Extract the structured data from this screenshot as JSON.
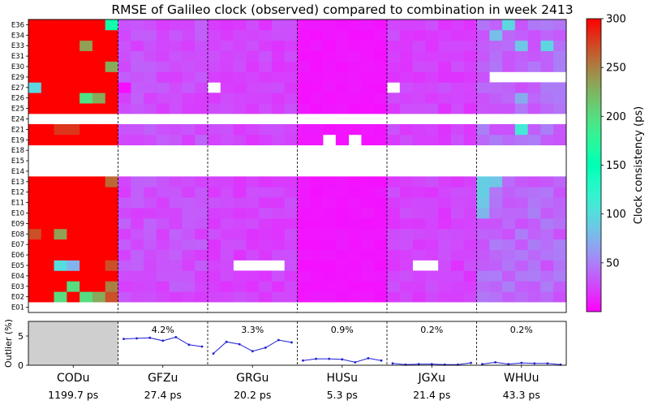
{
  "chart_data": {
    "type": "heatmap",
    "title": "RMSE of Galileo clock (observed) compared to combination in week 2413",
    "satellites": [
      "E01",
      "E02",
      "E03",
      "E04",
      "E05",
      "E06",
      "E07",
      "E08",
      "E09",
      "E10",
      "E11",
      "E12",
      "E13",
      "E14",
      "E15",
      "E18",
      "E19",
      "E21",
      "E24",
      "E25",
      "E26",
      "E27",
      "E29",
      "E30",
      "E31",
      "E33",
      "E34",
      "E36"
    ],
    "empty_rows": [
      "E01",
      "E14",
      "E15",
      "E18",
      "E24"
    ],
    "days_per_center": 7,
    "colorbar": {
      "label": "Clock consistency (ps)",
      "ticks": [
        50,
        100,
        150,
        200,
        250,
        300
      ],
      "vmin": 0,
      "vmax": 300,
      "colormap": "rainbow"
    },
    "centers": [
      {
        "name": "CODu",
        "rms_label": "1199.7 ps",
        "outlier_label": "",
        "outlier_series": [],
        "base_value": 300,
        "anomalies": [
          {
            "sat": "E36",
            "day": 6,
            "value": 160
          },
          {
            "sat": "E33",
            "day": 4,
            "value": 235
          },
          {
            "sat": "E30",
            "day": 6,
            "value": 230
          },
          {
            "sat": "E27",
            "day": 0,
            "value": 95
          },
          {
            "sat": "E26",
            "day": 4,
            "value": 195
          },
          {
            "sat": "E26",
            "day": 5,
            "value": 230
          },
          {
            "sat": "E21",
            "day": 2,
            "value": 280
          },
          {
            "sat": "E21",
            "day": 3,
            "value": 280
          },
          {
            "sat": "E13",
            "day": 6,
            "value": 260
          },
          {
            "sat": "E08",
            "day": 0,
            "value": 270
          },
          {
            "sat": "E08",
            "day": 2,
            "value": 235
          },
          {
            "sat": "E05",
            "day": 2,
            "value": 100
          },
          {
            "sat": "E05",
            "day": 3,
            "value": 75
          },
          {
            "sat": "E05",
            "day": 6,
            "value": 270
          },
          {
            "sat": "E03",
            "day": 3,
            "value": 200
          },
          {
            "sat": "E03",
            "day": 6,
            "value": 250
          },
          {
            "sat": "E02",
            "day": 2,
            "value": 200
          },
          {
            "sat": "E02",
            "day": 4,
            "value": 200
          },
          {
            "sat": "E02",
            "day": 5,
            "value": 230
          },
          {
            "sat": "E02",
            "day": 6,
            "value": 270
          }
        ],
        "missing": []
      },
      {
        "name": "GFZu",
        "rms_label": "27.4 ps",
        "outlier_label": "4.2%",
        "outlier_series": [
          4.5,
          4.6,
          4.7,
          4.2,
          4.8,
          3.5,
          3.2
        ],
        "base_value": 30,
        "anomalies": [
          {
            "sat": "E27",
            "day": 0,
            "value": 5
          }
        ],
        "missing": []
      },
      {
        "name": "GRGu",
        "rms_label": "20.2 ps",
        "outlier_label": "3.3%",
        "outlier_series": [
          2.0,
          4.0,
          3.6,
          2.4,
          3.0,
          4.3,
          3.9
        ],
        "base_value": 25,
        "anomalies": [],
        "missing": [
          {
            "sat": "E27",
            "day": 0
          },
          {
            "sat": "E05",
            "day": 2
          },
          {
            "sat": "E05",
            "day": 3
          },
          {
            "sat": "E05",
            "day": 4
          },
          {
            "sat": "E05",
            "day": 5
          }
        ]
      },
      {
        "name": "HUSu",
        "rms_label": "5.3 ps",
        "outlier_label": "0.9%",
        "outlier_series": [
          0.8,
          1.1,
          1.1,
          1.0,
          0.5,
          1.2,
          0.8
        ],
        "base_value": 8,
        "anomalies": [],
        "missing": [
          {
            "sat": "E19",
            "day": 2
          },
          {
            "sat": "E19",
            "day": 4
          }
        ]
      },
      {
        "name": "JGXu",
        "rms_label": "21.4 ps",
        "outlier_label": "0.2%",
        "outlier_series": [
          0.3,
          0.1,
          0.2,
          0.2,
          0.1,
          0.1,
          0.4
        ],
        "base_value": 25,
        "anomalies": [],
        "missing": [
          {
            "sat": "E27",
            "day": 0
          },
          {
            "sat": "E05",
            "day": 2
          },
          {
            "sat": "E05",
            "day": 3
          }
        ]
      },
      {
        "name": "WHUu",
        "rms_label": "43.3 ps",
        "outlier_label": "0.2%",
        "outlier_series": [
          0.2,
          0.5,
          0.2,
          0.4,
          0.3,
          0.3,
          0.1
        ],
        "base_value": 40,
        "anomalies": [
          {
            "sat": "E36",
            "day": 2,
            "value": 95
          },
          {
            "sat": "E34",
            "day": 1,
            "value": 80
          },
          {
            "sat": "E33",
            "day": 3,
            "value": 85
          },
          {
            "sat": "E33",
            "day": 5,
            "value": 95
          },
          {
            "sat": "E26",
            "day": 3,
            "value": 70
          },
          {
            "sat": "E21",
            "day": 3,
            "value": 110
          },
          {
            "sat": "E13",
            "day": 0,
            "value": 90
          },
          {
            "sat": "E13",
            "day": 1,
            "value": 85
          },
          {
            "sat": "E12",
            "day": 0,
            "value": 90
          },
          {
            "sat": "E11",
            "day": 0,
            "value": 85
          },
          {
            "sat": "E10",
            "day": 0,
            "value": 75
          }
        ],
        "missing": [
          {
            "sat": "E29",
            "day": 1
          },
          {
            "sat": "E29",
            "day": 2
          },
          {
            "sat": "E29",
            "day": 3
          },
          {
            "sat": "E29",
            "day": 4
          },
          {
            "sat": "E29",
            "day": 5
          },
          {
            "sat": "E29",
            "day": 6
          }
        ]
      }
    ],
    "outlier_panel": {
      "ylabel": "Outlier (%)",
      "yticks": [
        0,
        5
      ],
      "ylim": [
        0,
        7.5
      ]
    }
  }
}
